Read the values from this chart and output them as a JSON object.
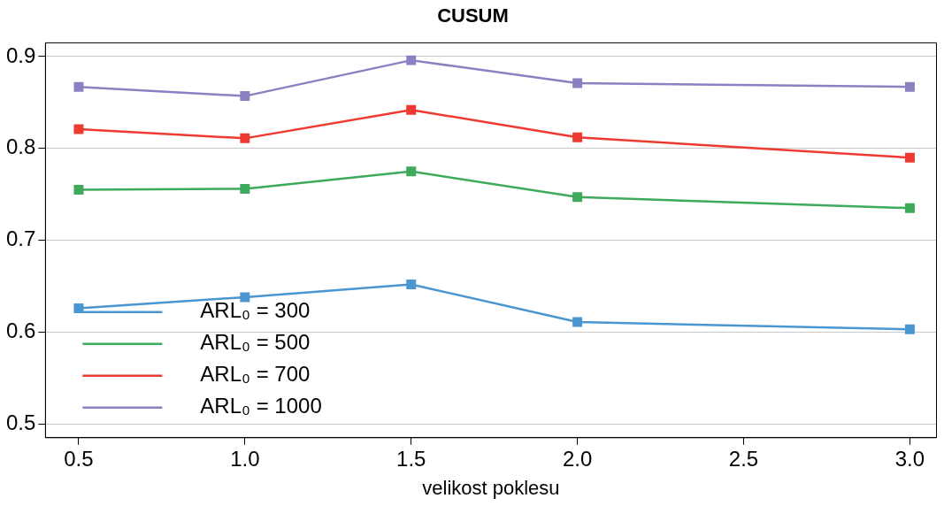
{
  "chart_data": {
    "type": "line",
    "title": "CUSUM",
    "xlabel": "velikost poklesu",
    "x": [
      0.5,
      1.0,
      1.5,
      2.0,
      2.5,
      3.0
    ],
    "series": [
      {
        "name": "ARL₀ = 300",
        "color": "#4a96d0",
        "values": [
          0.626,
          0.638,
          0.652,
          0.611,
          null,
          0.603
        ]
      },
      {
        "name": "ARL₀ = 500",
        "color": "#3eaa5c",
        "values": [
          0.755,
          0.756,
          0.775,
          0.747,
          null,
          0.735
        ]
      },
      {
        "name": "ARL₀ = 700",
        "color": "#ee3a30",
        "values": [
          0.821,
          0.811,
          0.842,
          0.812,
          null,
          0.79
        ]
      },
      {
        "name": "ARL₀ = 1000",
        "color": "#8a80c2",
        "values": [
          0.867,
          0.857,
          0.896,
          0.871,
          null,
          0.867
        ]
      }
    ],
    "xlim": [
      0.4,
      3.08
    ],
    "xticks": [
      {
        "value": 0.5,
        "label": "0.5"
      },
      {
        "value": 1,
        "label": "1.0"
      },
      {
        "value": 1.5,
        "label": "1.5"
      },
      {
        "value": 2,
        "label": "2.0"
      },
      {
        "value": 2.5,
        "label": "2.5"
      },
      {
        "value": 3,
        "label": "3.0"
      }
    ],
    "ylim": [
      0.485,
      0.915
    ],
    "yticks": [
      0.5,
      0.6,
      0.7,
      0.8,
      0.9
    ],
    "grid": "y",
    "legend": "bottom left",
    "marker": "square",
    "line_style": "solid"
  }
}
